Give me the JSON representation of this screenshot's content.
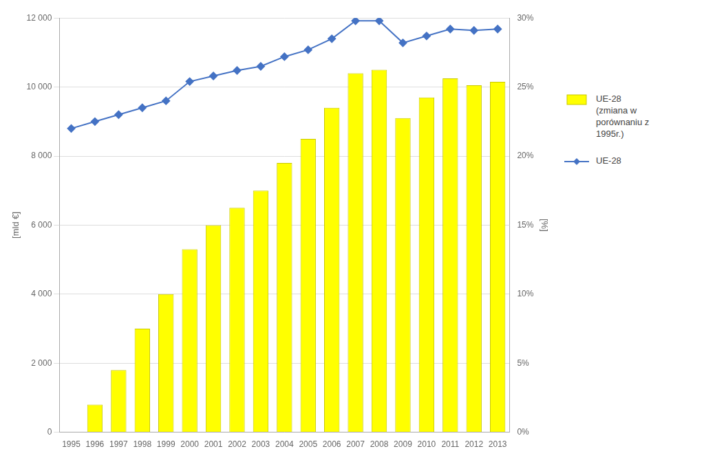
{
  "chart_data": {
    "type": "bar",
    "categories": [
      "1995",
      "1996",
      "1997",
      "1998",
      "1999",
      "2000",
      "2001",
      "2002",
      "2003",
      "2004",
      "2005",
      "2006",
      "2007",
      "2008",
      "2009",
      "2010",
      "2011",
      "2012",
      "2013"
    ],
    "series": [
      {
        "name": "UE-28\n(zmiana w\nporównaniu z\n1995r.)",
        "type": "bar",
        "color": "#ffff00",
        "axis": "y",
        "values": [
          0,
          800,
          1800,
          3000,
          4000,
          5300,
          6000,
          6500,
          7000,
          7800,
          8500,
          9400,
          10400,
          10500,
          9100,
          9700,
          10250,
          10050,
          10150
        ]
      },
      {
        "name": "UE-28",
        "type": "line",
        "color": "#4472c4",
        "marker": "diamond",
        "axis": "y2",
        "values": [
          22.0,
          22.5,
          23.0,
          23.5,
          24.0,
          25.4,
          25.8,
          26.2,
          26.5,
          27.2,
          27.7,
          28.5,
          29.8,
          29.8,
          28.2,
          28.7,
          29.2,
          29.1,
          29.2
        ]
      }
    ],
    "ylabel": "[mld €]",
    "y2label": "[%]",
    "ylim": [
      0,
      12000
    ],
    "yticks": [
      0,
      {
        "value": 2000,
        "label": "2 000"
      },
      {
        "value": 4000,
        "label": "4 000"
      },
      {
        "value": 6000,
        "label": "6 000"
      },
      {
        "value": 8000,
        "label": "8 000"
      },
      {
        "value": 10000,
        "label": "10 000"
      },
      {
        "value": 12000,
        "label": "12 000"
      }
    ],
    "y2lim": [
      0,
      30
    ],
    "y2ticks": [
      {
        "value": 0,
        "label": "0%"
      },
      {
        "value": 5,
        "label": "5%"
      },
      {
        "value": 10,
        "label": "10%"
      },
      {
        "value": 15,
        "label": "15%"
      },
      {
        "value": 20,
        "label": "20%"
      },
      {
        "value": 25,
        "label": "25%"
      },
      {
        "value": 30,
        "label": "30%"
      }
    ],
    "grid": true,
    "legend": "right"
  }
}
